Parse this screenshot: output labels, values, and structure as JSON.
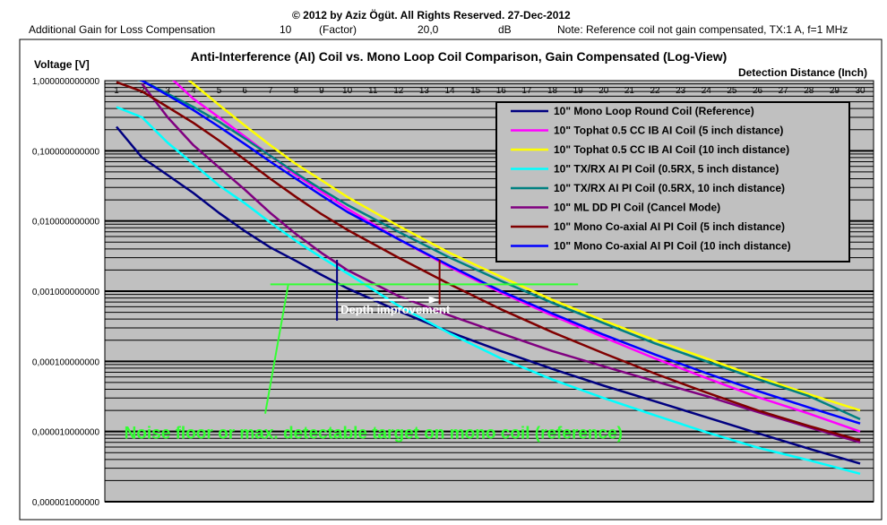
{
  "header": {
    "copyright": "© 2012 by Aziz Ögüt. All Rights Reserved. 27-Dec-2012",
    "gain_label": "Additional Gain for Loss Compensation",
    "gain_factor_value": "10",
    "gain_factor_unit": "(Factor)",
    "gain_db_value": "20,0",
    "gain_db_unit": "dB",
    "note": "Note: Reference coil not gain compensated, TX:1 A, f=1 MHz"
  },
  "chart_data": {
    "type": "line",
    "title": "Anti-Interference (AI) Coil vs. Mono Loop Coil Comparison, Gain Compensated (Log-View)",
    "ylabel": "Voltage [V]",
    "xlabel": "Detection Distance (Inch)",
    "yscale": "log",
    "ylim": [
      1e-06,
      1
    ],
    "xlim": [
      1,
      30
    ],
    "y_tick_labels": [
      "1,000000000000",
      "0,100000000000",
      "0,010000000000",
      "0,001000000000",
      "0,000100000000",
      "0,000010000000",
      "0,000001000000"
    ],
    "x_tick_labels": [
      "1",
      "2",
      "3",
      "4",
      "5",
      "6",
      "7",
      "8",
      "9",
      "10",
      "11",
      "12",
      "13",
      "14",
      "15",
      "16",
      "17",
      "18",
      "19",
      "20",
      "21",
      "22",
      "23",
      "24",
      "25",
      "26",
      "27",
      "28",
      "29",
      "30"
    ],
    "legend_position": "top-right",
    "plot_background": "#c0c0c0",
    "series": [
      {
        "name": "10\" Mono Loop Round Coil (Reference)",
        "color": "#000080",
        "x": [
          1,
          2,
          3,
          4,
          5,
          6,
          7,
          8,
          9,
          10,
          12,
          14,
          16,
          18,
          20,
          22,
          24,
          26,
          28,
          30
        ],
        "y": [
          0.22,
          0.08,
          0.045,
          0.025,
          0.013,
          0.0072,
          0.0042,
          0.0027,
          0.0017,
          0.0011,
          0.00052,
          0.00026,
          0.00014,
          7.8e-05,
          4.5e-05,
          2.7e-05,
          1.6e-05,
          9.5e-06,
          5.7e-06,
          3.5e-06
        ]
      },
      {
        "name": "10\" Tophat 0.5 CC IB AI Coil (5 inch distance)",
        "color": "#ff00ff",
        "x": [
          2,
          3,
          4,
          5,
          6,
          7,
          8,
          9,
          10,
          12,
          14,
          16,
          18,
          20,
          22,
          24,
          26,
          28,
          30
        ],
        "y": [
          1.6,
          1.2,
          0.55,
          0.3,
          0.16,
          0.085,
          0.045,
          0.026,
          0.015,
          0.0055,
          0.0022,
          0.00095,
          0.00045,
          0.00022,
          0.00011,
          5.8e-05,
          3.1e-05,
          1.8e-05,
          1e-05
        ]
      },
      {
        "name": "10\" Tophat 0.5 CC IB AI Coil (10 inch distance)",
        "color": "#ffff00",
        "x": [
          3,
          4,
          5,
          6,
          7,
          8,
          9,
          10,
          12,
          14,
          16,
          18,
          20,
          22,
          24,
          26,
          28,
          30
        ],
        "y": [
          1.8,
          0.9,
          0.45,
          0.23,
          0.12,
          0.065,
          0.038,
          0.022,
          0.0085,
          0.0035,
          0.0016,
          0.00075,
          0.00038,
          0.0002,
          0.00011,
          6e-05,
          3.4e-05,
          2e-05
        ]
      },
      {
        "name": "10\" TX/RX AI PI Coil (0.5RX, 5 inch distance)",
        "color": "#00ffff",
        "x": [
          1,
          2,
          3,
          4,
          5,
          6,
          7,
          8,
          9,
          10,
          12,
          14,
          16,
          18,
          20,
          22,
          24,
          26,
          28,
          30
        ],
        "y": [
          0.42,
          0.3,
          0.13,
          0.065,
          0.032,
          0.018,
          0.0095,
          0.0052,
          0.003,
          0.0018,
          0.00062,
          0.00025,
          0.00011,
          5.5e-05,
          3e-05,
          1.7e-05,
          9.8e-06,
          5.9e-06,
          3.9e-06,
          2.5e-06
        ]
      },
      {
        "name": "10\" TX/RX AI PI Coil (0.5RX, 10 inch distance)",
        "color": "#008080",
        "x": [
          1,
          2,
          3,
          4,
          5,
          6,
          7,
          8,
          9,
          10,
          12,
          14,
          16,
          18,
          20,
          22,
          24,
          26,
          28,
          30
        ],
        "y": [
          1.2,
          1.0,
          0.65,
          0.42,
          0.26,
          0.15,
          0.085,
          0.048,
          0.028,
          0.017,
          0.007,
          0.003,
          0.0014,
          0.00068,
          0.00035,
          0.00018,
          0.0001,
          5.6e-05,
          3.2e-05,
          1.5e-05
        ]
      },
      {
        "name": "10\" ML DD PI Coil (Cancel Mode)",
        "color": "#800080",
        "x": [
          2,
          3,
          4,
          5,
          6,
          7,
          8,
          9,
          10,
          12,
          14,
          16,
          18,
          20,
          22,
          24,
          26,
          28,
          30
        ],
        "y": [
          0.9,
          0.3,
          0.12,
          0.058,
          0.028,
          0.013,
          0.0065,
          0.0035,
          0.002,
          0.00085,
          0.00045,
          0.00025,
          0.00014,
          8.5e-05,
          5.2e-05,
          3.2e-05,
          1.9e-05,
          1.15e-05,
          7e-06
        ]
      },
      {
        "name": "10\" Mono Co-axial AI PI Coil (5 inch distance)",
        "color": "#800000",
        "x": [
          1,
          2,
          3,
          4,
          5,
          6,
          7,
          8,
          9,
          10,
          12,
          14,
          16,
          18,
          20,
          22,
          24,
          26,
          28,
          30
        ],
        "y": [
          0.95,
          0.7,
          0.42,
          0.25,
          0.14,
          0.075,
          0.04,
          0.022,
          0.0125,
          0.0075,
          0.003,
          0.00125,
          0.00055,
          0.00026,
          0.00013,
          6.7e-05,
          3.6e-05,
          2e-05,
          1.2e-05,
          7.5e-06
        ]
      },
      {
        "name": "10\" Mono Co-axial AI PI Coil (10 inch distance)",
        "color": "#0000ff",
        "x": [
          1,
          2,
          3,
          4,
          5,
          6,
          7,
          8,
          9,
          10,
          12,
          14,
          16,
          18,
          20,
          22,
          24,
          26,
          28,
          30
        ],
        "y": [
          1.4,
          1.0,
          0.62,
          0.38,
          0.22,
          0.125,
          0.07,
          0.04,
          0.023,
          0.0135,
          0.0055,
          0.0023,
          0.001,
          0.00048,
          0.00024,
          0.000125,
          6.8e-05,
          3.8e-05,
          2.2e-05,
          1.3e-05
        ]
      }
    ],
    "annotations": {
      "depth_improvement": {
        "text": "Depth improvement",
        "color": "#ffffff"
      },
      "noise_floor": {
        "text": "Noise floor or max. detectable target on mono coil (reference)",
        "color": "#33ff33",
        "y_value": 0.00125,
        "x_from": 7,
        "x_to": 19
      },
      "depth_markers": [
        {
          "x": 9.6,
          "color": "#000080"
        },
        {
          "x": 13.6,
          "color": "#800000"
        }
      ]
    }
  }
}
